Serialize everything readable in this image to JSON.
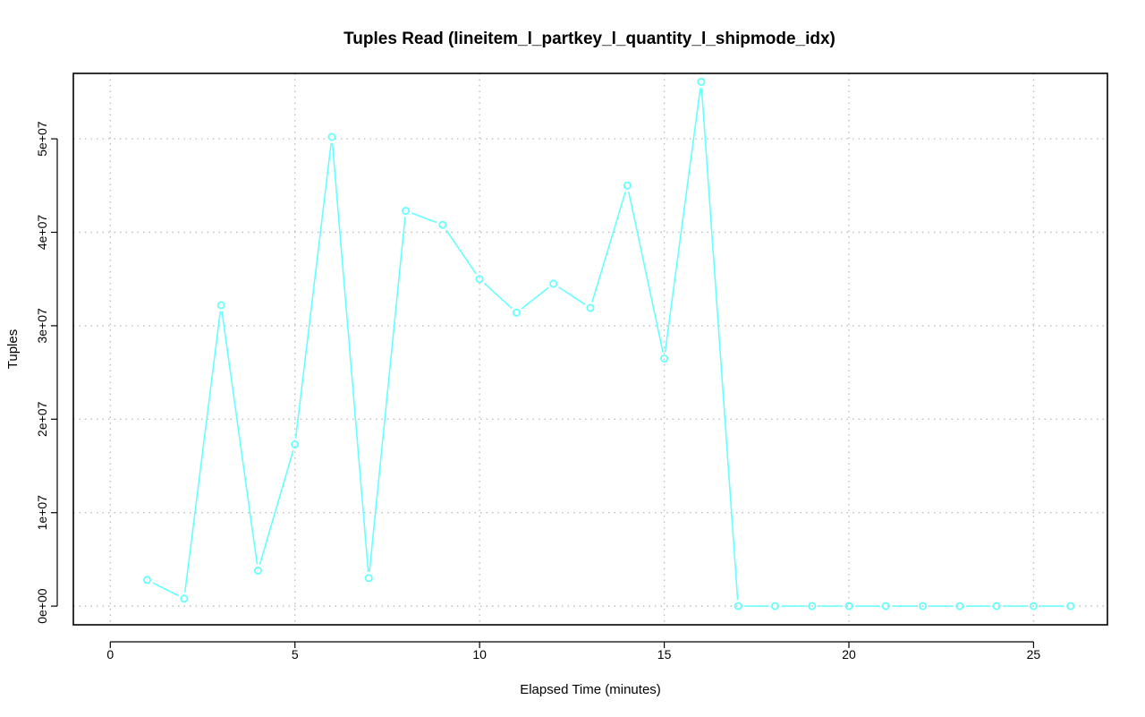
{
  "chart_data": {
    "type": "line",
    "title": "Tuples Read (lineitem_l_partkey_l_quantity_l_shipmode_idx)",
    "xlabel": "Elapsed Time (minutes)",
    "ylabel": "Tuples",
    "xlim": [
      -1,
      27
    ],
    "ylim": [
      -2000000,
      57000000
    ],
    "x_ticks": [
      0,
      5,
      10,
      15,
      20,
      25
    ],
    "x_tick_labels": [
      "0",
      "5",
      "10",
      "15",
      "20",
      "25"
    ],
    "y_ticks": [
      0,
      10000000,
      20000000,
      30000000,
      40000000,
      50000000
    ],
    "y_tick_labels": [
      "0e+00",
      "1e+07",
      "2e+07",
      "3e+07",
      "4e+07",
      "5e+07"
    ],
    "grid": true,
    "series": [
      {
        "color": "#66ffff",
        "marker": "open-circle",
        "x": [
          1,
          2,
          3,
          4,
          5,
          6,
          7,
          8,
          9,
          10,
          11,
          12,
          13,
          14,
          15,
          16,
          17,
          18,
          19,
          20,
          21,
          22,
          23,
          24,
          25,
          26
        ],
        "values": [
          2800000,
          800000,
          32200000,
          3800000,
          17300000,
          50200000,
          3000000,
          42300000,
          40800000,
          35000000,
          31400000,
          34500000,
          31900000,
          45000000,
          26500000,
          56100000,
          0,
          0,
          0,
          0,
          0,
          0,
          0,
          0,
          0,
          0
        ]
      }
    ]
  }
}
